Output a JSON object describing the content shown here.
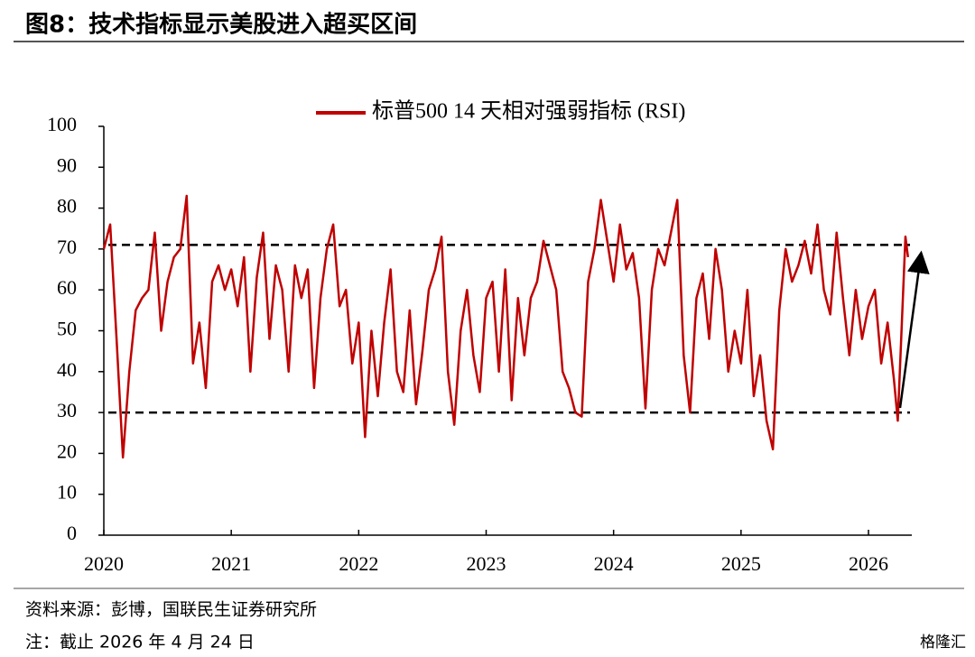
{
  "chart_data": {
    "type": "line",
    "title": "图8：技术指标显示美股进入超买区间",
    "source": "资料来源：彭博，国联民生证券研究所",
    "note": "注：截止 2026 年 4 月 24 日",
    "watermark": "格隆汇",
    "x": [
      2020.0,
      2020.05,
      2020.1,
      2020.15,
      2020.2,
      2020.25,
      2020.3,
      2020.35,
      2020.4,
      2020.45,
      2020.5,
      2020.55,
      2020.6,
      2020.65,
      2020.7,
      2020.75,
      2020.8,
      2020.85,
      2020.9,
      2020.95,
      2021.0,
      2021.05,
      2021.1,
      2021.15,
      2021.2,
      2021.25,
      2021.3,
      2021.35,
      2021.4,
      2021.45,
      2021.5,
      2021.55,
      2021.6,
      2021.65,
      2021.7,
      2021.75,
      2021.8,
      2021.85,
      2021.9,
      2021.95,
      2022.0,
      2022.05,
      2022.1,
      2022.15,
      2022.2,
      2022.25,
      2022.3,
      2022.35,
      2022.4,
      2022.45,
      2022.5,
      2022.55,
      2022.6,
      2022.65,
      2022.7,
      2022.75,
      2022.8,
      2022.85,
      2022.9,
      2022.95,
      2023.0,
      2023.05,
      2023.1,
      2023.15,
      2023.2,
      2023.25,
      2023.3,
      2023.35,
      2023.4,
      2023.45,
      2023.5,
      2023.55,
      2023.6,
      2023.65,
      2023.7,
      2023.75,
      2023.8,
      2023.85,
      2023.9,
      2023.95,
      2024.0,
      2024.05,
      2024.1,
      2024.15,
      2024.2,
      2024.25,
      2024.3,
      2024.35,
      2024.4,
      2024.45,
      2024.5,
      2024.55,
      2024.6,
      2024.65,
      2024.7,
      2024.75,
      2024.8,
      2024.85,
      2024.9,
      2024.95,
      2025.0,
      2025.05,
      2025.1,
      2025.15,
      2025.2,
      2025.25,
      2025.3,
      2025.35,
      2025.4,
      2025.45,
      2025.5,
      2025.55,
      2025.6,
      2025.65,
      2025.7,
      2025.75,
      2025.8,
      2025.85,
      2025.9,
      2025.95,
      2026.0,
      2026.05,
      2026.1,
      2026.15,
      2026.2,
      2026.23,
      2026.27,
      2026.29,
      2026.31
    ],
    "series": [
      {
        "name": "标普500 14 天相对强弱指标 (RSI)",
        "color": "#c00000",
        "values": [
          70,
          76,
          48,
          19,
          40,
          55,
          58,
          60,
          74,
          50,
          62,
          68,
          70,
          83,
          42,
          52,
          36,
          62,
          66,
          60,
          65,
          56,
          68,
          40,
          63,
          74,
          48,
          66,
          60,
          40,
          66,
          58,
          65,
          36,
          58,
          70,
          76,
          56,
          60,
          42,
          52,
          24,
          50,
          34,
          52,
          65,
          40,
          35,
          55,
          32,
          45,
          60,
          65,
          73,
          40,
          27,
          50,
          60,
          44,
          35,
          58,
          62,
          40,
          65,
          33,
          58,
          44,
          58,
          62,
          72,
          66,
          60,
          40,
          36,
          30,
          29,
          62,
          70,
          82,
          72,
          62,
          76,
          65,
          69,
          58,
          31,
          60,
          70,
          66,
          74,
          82,
          44,
          30,
          58,
          64,
          48,
          70,
          60,
          40,
          50,
          42,
          60,
          34,
          44,
          28,
          21,
          55,
          70,
          62,
          66,
          72,
          64,
          76,
          60,
          54,
          74,
          58,
          44,
          60,
          48,
          56,
          60,
          42,
          52,
          38,
          28,
          58,
          73,
          68
        ]
      }
    ],
    "reference_lines": [
      71,
      30
    ],
    "xlim": [
      2020,
      2026.34
    ],
    "xticks": [
      2020,
      2021,
      2022,
      2023,
      2024,
      2025,
      2026
    ],
    "ylim": [
      0,
      100
    ],
    "yticks": [
      0,
      10,
      20,
      30,
      40,
      50,
      60,
      70,
      80,
      90,
      100
    ]
  }
}
